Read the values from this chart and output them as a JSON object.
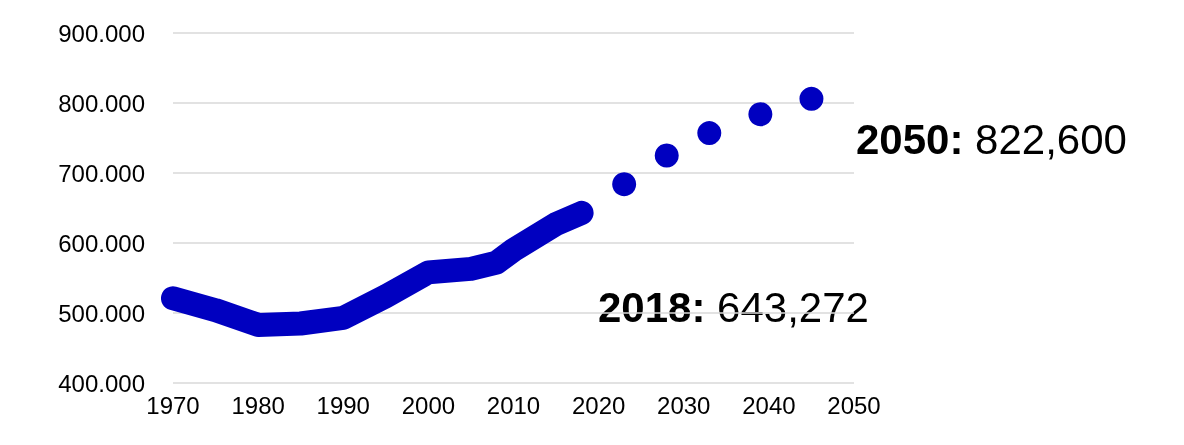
{
  "chart_data": {
    "type": "line",
    "series": [
      {
        "color": "#0000c0",
        "x": [
          1970,
          1975,
          1980,
          1985,
          1990,
          1995,
          2000,
          2005,
          2008,
          2010,
          2015,
          2018
        ],
        "values": [
          521,
          504,
          483,
          485,
          493,
          524,
          558,
          563,
          572,
          590,
          627,
          643
        ]
      },
      {
        "type": "scatter",
        "color": "#0000c0",
        "x": [
          2023,
          2028,
          2033,
          2039,
          2045
        ],
        "values": [
          684,
          725,
          757,
          784,
          806
        ]
      }
    ],
    "xlim": [
      1970,
      2050
    ],
    "xticks": [
      1970,
      1980,
      1990,
      2000,
      2010,
      2020,
      2030,
      2040,
      2050
    ],
    "ylim": [
      400,
      900
    ],
    "yticks": [
      {
        "value": 400,
        "label": "400.000"
      },
      {
        "value": 500,
        "label": "500.000"
      },
      {
        "value": 600,
        "label": "600.000"
      },
      {
        "value": 700,
        "label": "700.000"
      },
      {
        "value": 800,
        "label": "800.000"
      },
      {
        "value": 900,
        "label": "900.000"
      }
    ],
    "grid": "y",
    "annotations": [
      "2018: 643,272",
      "2050: 822,600"
    ]
  }
}
